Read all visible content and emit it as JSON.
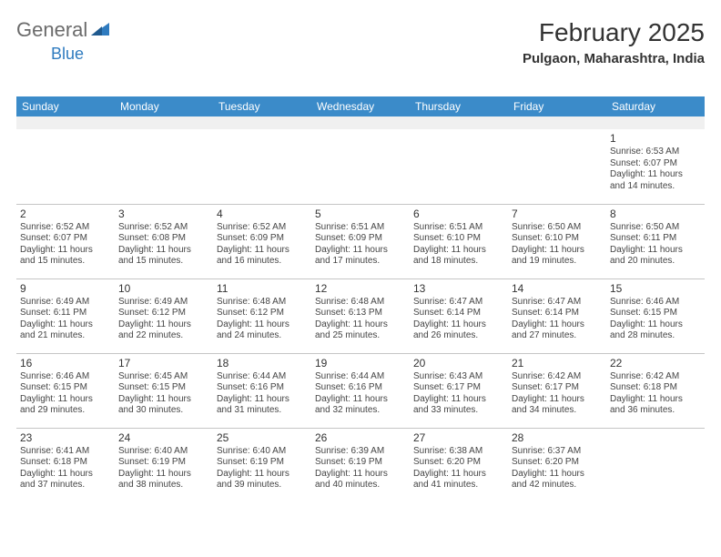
{
  "logo": {
    "general": "General",
    "blue": "Blue"
  },
  "header": {
    "title": "February 2025",
    "location": "Pulgaon, Maharashtra, India"
  },
  "colors": {
    "header_bg": "#3b8bc9",
    "header_text": "#ffffff",
    "border": "#c5c5c5",
    "blank_bg": "#f0f0f0",
    "text": "#444444",
    "title_text": "#333333",
    "logo_gray": "#6b6b6b",
    "logo_blue": "#2f7bbf"
  },
  "fonts": {
    "title_size": 28,
    "location_size": 15,
    "dayname_size": 12,
    "body_size": 10
  },
  "dayNames": [
    "Sunday",
    "Monday",
    "Tuesday",
    "Wednesday",
    "Thursday",
    "Friday",
    "Saturday"
  ],
  "weeks": [
    [
      null,
      null,
      null,
      null,
      null,
      null,
      {
        "d": "1",
        "sr": "Sunrise: 6:53 AM",
        "ss": "Sunset: 6:07 PM",
        "dl1": "Daylight: 11 hours",
        "dl2": "and 14 minutes."
      }
    ],
    [
      {
        "d": "2",
        "sr": "Sunrise: 6:52 AM",
        "ss": "Sunset: 6:07 PM",
        "dl1": "Daylight: 11 hours",
        "dl2": "and 15 minutes."
      },
      {
        "d": "3",
        "sr": "Sunrise: 6:52 AM",
        "ss": "Sunset: 6:08 PM",
        "dl1": "Daylight: 11 hours",
        "dl2": "and 15 minutes."
      },
      {
        "d": "4",
        "sr": "Sunrise: 6:52 AM",
        "ss": "Sunset: 6:09 PM",
        "dl1": "Daylight: 11 hours",
        "dl2": "and 16 minutes."
      },
      {
        "d": "5",
        "sr": "Sunrise: 6:51 AM",
        "ss": "Sunset: 6:09 PM",
        "dl1": "Daylight: 11 hours",
        "dl2": "and 17 minutes."
      },
      {
        "d": "6",
        "sr": "Sunrise: 6:51 AM",
        "ss": "Sunset: 6:10 PM",
        "dl1": "Daylight: 11 hours",
        "dl2": "and 18 minutes."
      },
      {
        "d": "7",
        "sr": "Sunrise: 6:50 AM",
        "ss": "Sunset: 6:10 PM",
        "dl1": "Daylight: 11 hours",
        "dl2": "and 19 minutes."
      },
      {
        "d": "8",
        "sr": "Sunrise: 6:50 AM",
        "ss": "Sunset: 6:11 PM",
        "dl1": "Daylight: 11 hours",
        "dl2": "and 20 minutes."
      }
    ],
    [
      {
        "d": "9",
        "sr": "Sunrise: 6:49 AM",
        "ss": "Sunset: 6:11 PM",
        "dl1": "Daylight: 11 hours",
        "dl2": "and 21 minutes."
      },
      {
        "d": "10",
        "sr": "Sunrise: 6:49 AM",
        "ss": "Sunset: 6:12 PM",
        "dl1": "Daylight: 11 hours",
        "dl2": "and 22 minutes."
      },
      {
        "d": "11",
        "sr": "Sunrise: 6:48 AM",
        "ss": "Sunset: 6:12 PM",
        "dl1": "Daylight: 11 hours",
        "dl2": "and 24 minutes."
      },
      {
        "d": "12",
        "sr": "Sunrise: 6:48 AM",
        "ss": "Sunset: 6:13 PM",
        "dl1": "Daylight: 11 hours",
        "dl2": "and 25 minutes."
      },
      {
        "d": "13",
        "sr": "Sunrise: 6:47 AM",
        "ss": "Sunset: 6:14 PM",
        "dl1": "Daylight: 11 hours",
        "dl2": "and 26 minutes."
      },
      {
        "d": "14",
        "sr": "Sunrise: 6:47 AM",
        "ss": "Sunset: 6:14 PM",
        "dl1": "Daylight: 11 hours",
        "dl2": "and 27 minutes."
      },
      {
        "d": "15",
        "sr": "Sunrise: 6:46 AM",
        "ss": "Sunset: 6:15 PM",
        "dl1": "Daylight: 11 hours",
        "dl2": "and 28 minutes."
      }
    ],
    [
      {
        "d": "16",
        "sr": "Sunrise: 6:46 AM",
        "ss": "Sunset: 6:15 PM",
        "dl1": "Daylight: 11 hours",
        "dl2": "and 29 minutes."
      },
      {
        "d": "17",
        "sr": "Sunrise: 6:45 AM",
        "ss": "Sunset: 6:15 PM",
        "dl1": "Daylight: 11 hours",
        "dl2": "and 30 minutes."
      },
      {
        "d": "18",
        "sr": "Sunrise: 6:44 AM",
        "ss": "Sunset: 6:16 PM",
        "dl1": "Daylight: 11 hours",
        "dl2": "and 31 minutes."
      },
      {
        "d": "19",
        "sr": "Sunrise: 6:44 AM",
        "ss": "Sunset: 6:16 PM",
        "dl1": "Daylight: 11 hours",
        "dl2": "and 32 minutes."
      },
      {
        "d": "20",
        "sr": "Sunrise: 6:43 AM",
        "ss": "Sunset: 6:17 PM",
        "dl1": "Daylight: 11 hours",
        "dl2": "and 33 minutes."
      },
      {
        "d": "21",
        "sr": "Sunrise: 6:42 AM",
        "ss": "Sunset: 6:17 PM",
        "dl1": "Daylight: 11 hours",
        "dl2": "and 34 minutes."
      },
      {
        "d": "22",
        "sr": "Sunrise: 6:42 AM",
        "ss": "Sunset: 6:18 PM",
        "dl1": "Daylight: 11 hours",
        "dl2": "and 36 minutes."
      }
    ],
    [
      {
        "d": "23",
        "sr": "Sunrise: 6:41 AM",
        "ss": "Sunset: 6:18 PM",
        "dl1": "Daylight: 11 hours",
        "dl2": "and 37 minutes."
      },
      {
        "d": "24",
        "sr": "Sunrise: 6:40 AM",
        "ss": "Sunset: 6:19 PM",
        "dl1": "Daylight: 11 hours",
        "dl2": "and 38 minutes."
      },
      {
        "d": "25",
        "sr": "Sunrise: 6:40 AM",
        "ss": "Sunset: 6:19 PM",
        "dl1": "Daylight: 11 hours",
        "dl2": "and 39 minutes."
      },
      {
        "d": "26",
        "sr": "Sunrise: 6:39 AM",
        "ss": "Sunset: 6:19 PM",
        "dl1": "Daylight: 11 hours",
        "dl2": "and 40 minutes."
      },
      {
        "d": "27",
        "sr": "Sunrise: 6:38 AM",
        "ss": "Sunset: 6:20 PM",
        "dl1": "Daylight: 11 hours",
        "dl2": "and 41 minutes."
      },
      {
        "d": "28",
        "sr": "Sunrise: 6:37 AM",
        "ss": "Sunset: 6:20 PM",
        "dl1": "Daylight: 11 hours",
        "dl2": "and 42 minutes."
      },
      null
    ]
  ]
}
